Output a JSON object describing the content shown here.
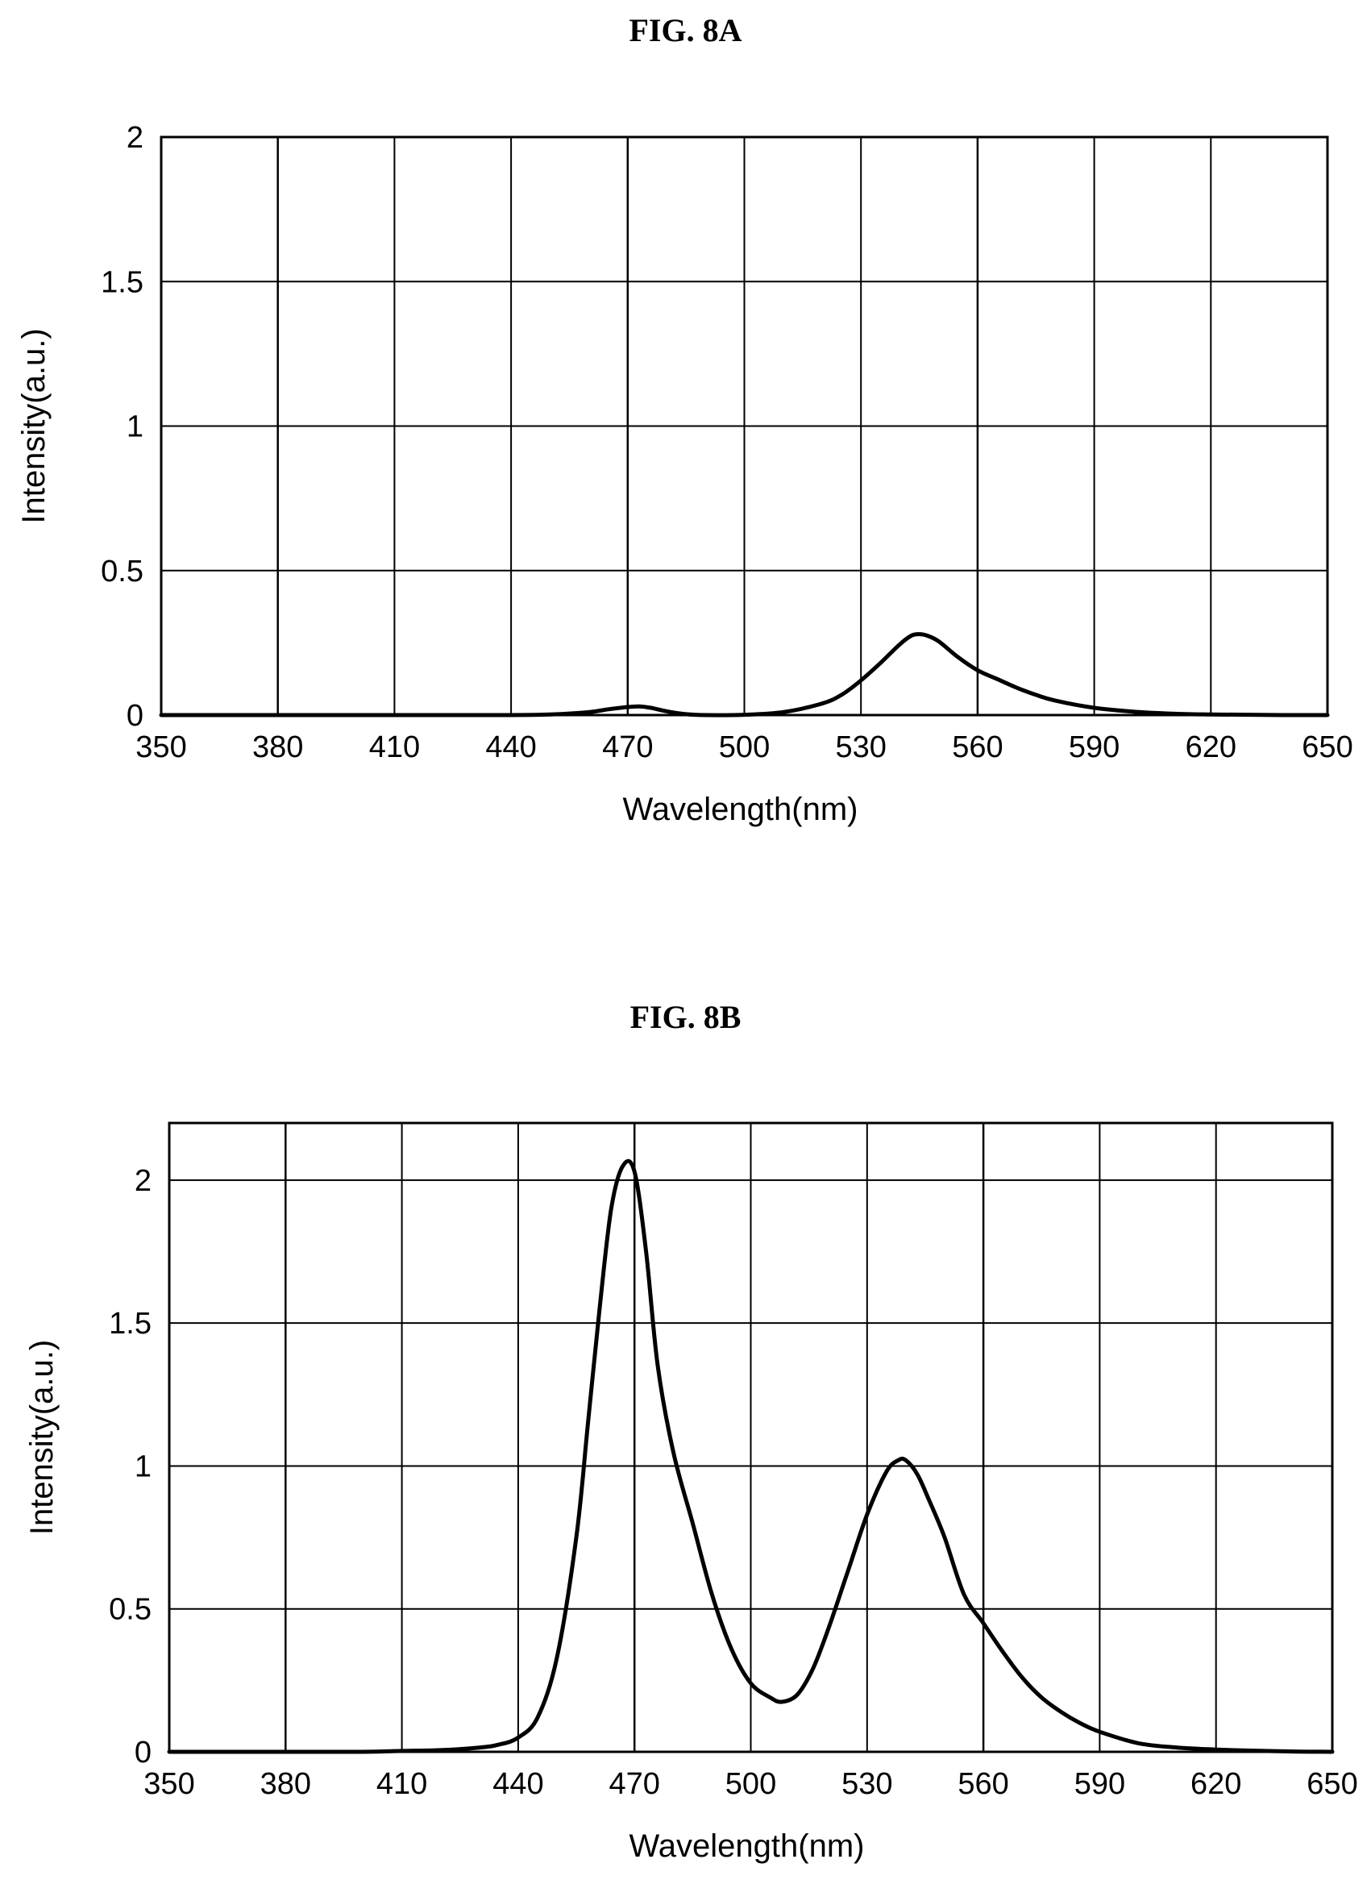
{
  "figures": [
    {
      "id": "a",
      "title": "FIG. 8A"
    },
    {
      "id": "b",
      "title": "FIG. 8B"
    }
  ],
  "chart_data": [
    {
      "type": "line",
      "title": "FIG. 8A",
      "xlabel": "Wavelength(nm)",
      "ylabel": "Intensity(a.u.)",
      "xlim": [
        350,
        650
      ],
      "ylim": [
        0,
        2
      ],
      "xticks": [
        350,
        380,
        410,
        440,
        470,
        500,
        530,
        560,
        590,
        620,
        650
      ],
      "yticks": [
        0,
        0.5,
        1,
        1.5,
        2
      ],
      "ytick_labels": [
        "0",
        "0.5",
        "1",
        "1.5",
        "2"
      ],
      "grid": true,
      "line_color": "#000000",
      "x": [
        350,
        380,
        410,
        440,
        450,
        460,
        465,
        470,
        473,
        476,
        480,
        485,
        490,
        500,
        510,
        520,
        525,
        530,
        535,
        540,
        543,
        545,
        547,
        550,
        555,
        560,
        565,
        570,
        575,
        580,
        590,
        600,
        610,
        620,
        630,
        640,
        650
      ],
      "values": [
        0,
        0,
        0,
        0,
        0.002,
        0.01,
        0.02,
        0.028,
        0.03,
        0.025,
        0.013,
        0.003,
        0.0,
        0.001,
        0.01,
        0.04,
        0.07,
        0.12,
        0.18,
        0.245,
        0.275,
        0.28,
        0.275,
        0.255,
        0.2,
        0.155,
        0.125,
        0.095,
        0.07,
        0.05,
        0.025,
        0.012,
        0.005,
        0.002,
        0.001,
        0.0,
        0.0
      ]
    },
    {
      "type": "line",
      "title": "FIG. 8B",
      "xlabel": "Wavelength(nm)",
      "ylabel": "Intensity(a.u.)",
      "xlim": [
        350,
        650
      ],
      "ylim": [
        0,
        2.2
      ],
      "xticks": [
        350,
        380,
        410,
        440,
        470,
        500,
        530,
        560,
        590,
        620,
        650
      ],
      "yticks": [
        0,
        0.5,
        1,
        1.5,
        2
      ],
      "ytick_labels": [
        "0",
        "0.5",
        "1",
        "1.5",
        "2"
      ],
      "grid": true,
      "line_color": "#000000",
      "x": [
        350,
        380,
        400,
        410,
        420,
        430,
        435,
        440,
        445,
        450,
        455,
        458,
        461,
        464,
        467,
        470,
        473,
        476,
        480,
        485,
        490,
        495,
        500,
        505,
        508,
        512,
        516,
        520,
        525,
        530,
        535,
        538,
        540,
        543,
        546,
        550,
        555,
        560,
        565,
        570,
        575,
        580,
        585,
        590,
        600,
        610,
        620,
        630,
        640,
        650
      ],
      "values": [
        0,
        0,
        0.0,
        0.003,
        0.006,
        0.015,
        0.025,
        0.05,
        0.12,
        0.33,
        0.75,
        1.15,
        1.55,
        1.9,
        2.05,
        2.03,
        1.75,
        1.35,
        1.05,
        0.8,
        0.55,
        0.36,
        0.24,
        0.19,
        0.175,
        0.2,
        0.29,
        0.43,
        0.63,
        0.83,
        0.98,
        1.02,
        1.02,
        0.97,
        0.88,
        0.75,
        0.55,
        0.45,
        0.35,
        0.26,
        0.19,
        0.14,
        0.1,
        0.07,
        0.03,
        0.015,
        0.008,
        0.004,
        0.001,
        0.0
      ]
    }
  ]
}
